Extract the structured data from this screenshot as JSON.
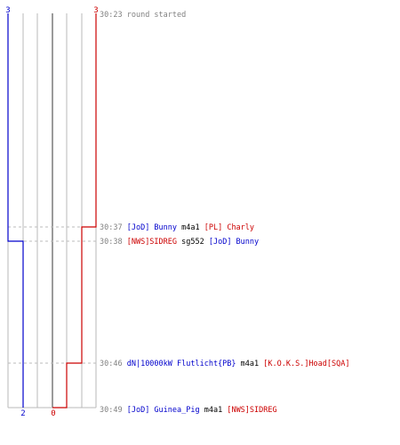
{
  "theme": {
    "blue": "#0000cc",
    "red": "#cc0000",
    "grid": "#b8b8b8",
    "center": "#707070",
    "dash": "#bbbbbb",
    "time": "#808080",
    "text": "#000000"
  },
  "scores": {
    "blue_top": "3",
    "red_top": "3",
    "blue_bottom": "2",
    "red_bottom": "0"
  },
  "events": [
    {
      "time": "30:23",
      "parts": [
        {
          "text": "round started",
          "color": "time"
        }
      ]
    },
    {
      "time": "30:37",
      "parts": [
        {
          "text": "[JoD] Bunny",
          "color": "blue"
        },
        {
          "text": " m4a1 ",
          "color": "text"
        },
        {
          "text": "[PL] Charly",
          "color": "red"
        }
      ]
    },
    {
      "time": "30:38",
      "parts": [
        {
          "text": "[NWS]SIDREG",
          "color": "red"
        },
        {
          "text": " sg552 ",
          "color": "text"
        },
        {
          "text": "[JoD] Bunny",
          "color": "blue"
        }
      ]
    },
    {
      "time": "30:46",
      "parts": [
        {
          "text": "dN|10000kW Flutlicht{PB}",
          "color": "blue"
        },
        {
          "text": " m4a1 ",
          "color": "text"
        },
        {
          "text": "[K.O.K.S.]Hoad[SQA]",
          "color": "red"
        }
      ]
    },
    {
      "time": "30:49",
      "parts": [
        {
          "text": "[JoD] Guinea_Pig",
          "color": "blue"
        },
        {
          "text": " m4a1 ",
          "color": "text"
        },
        {
          "text": "[NWS]SIDREG",
          "color": "red"
        }
      ]
    }
  ]
}
